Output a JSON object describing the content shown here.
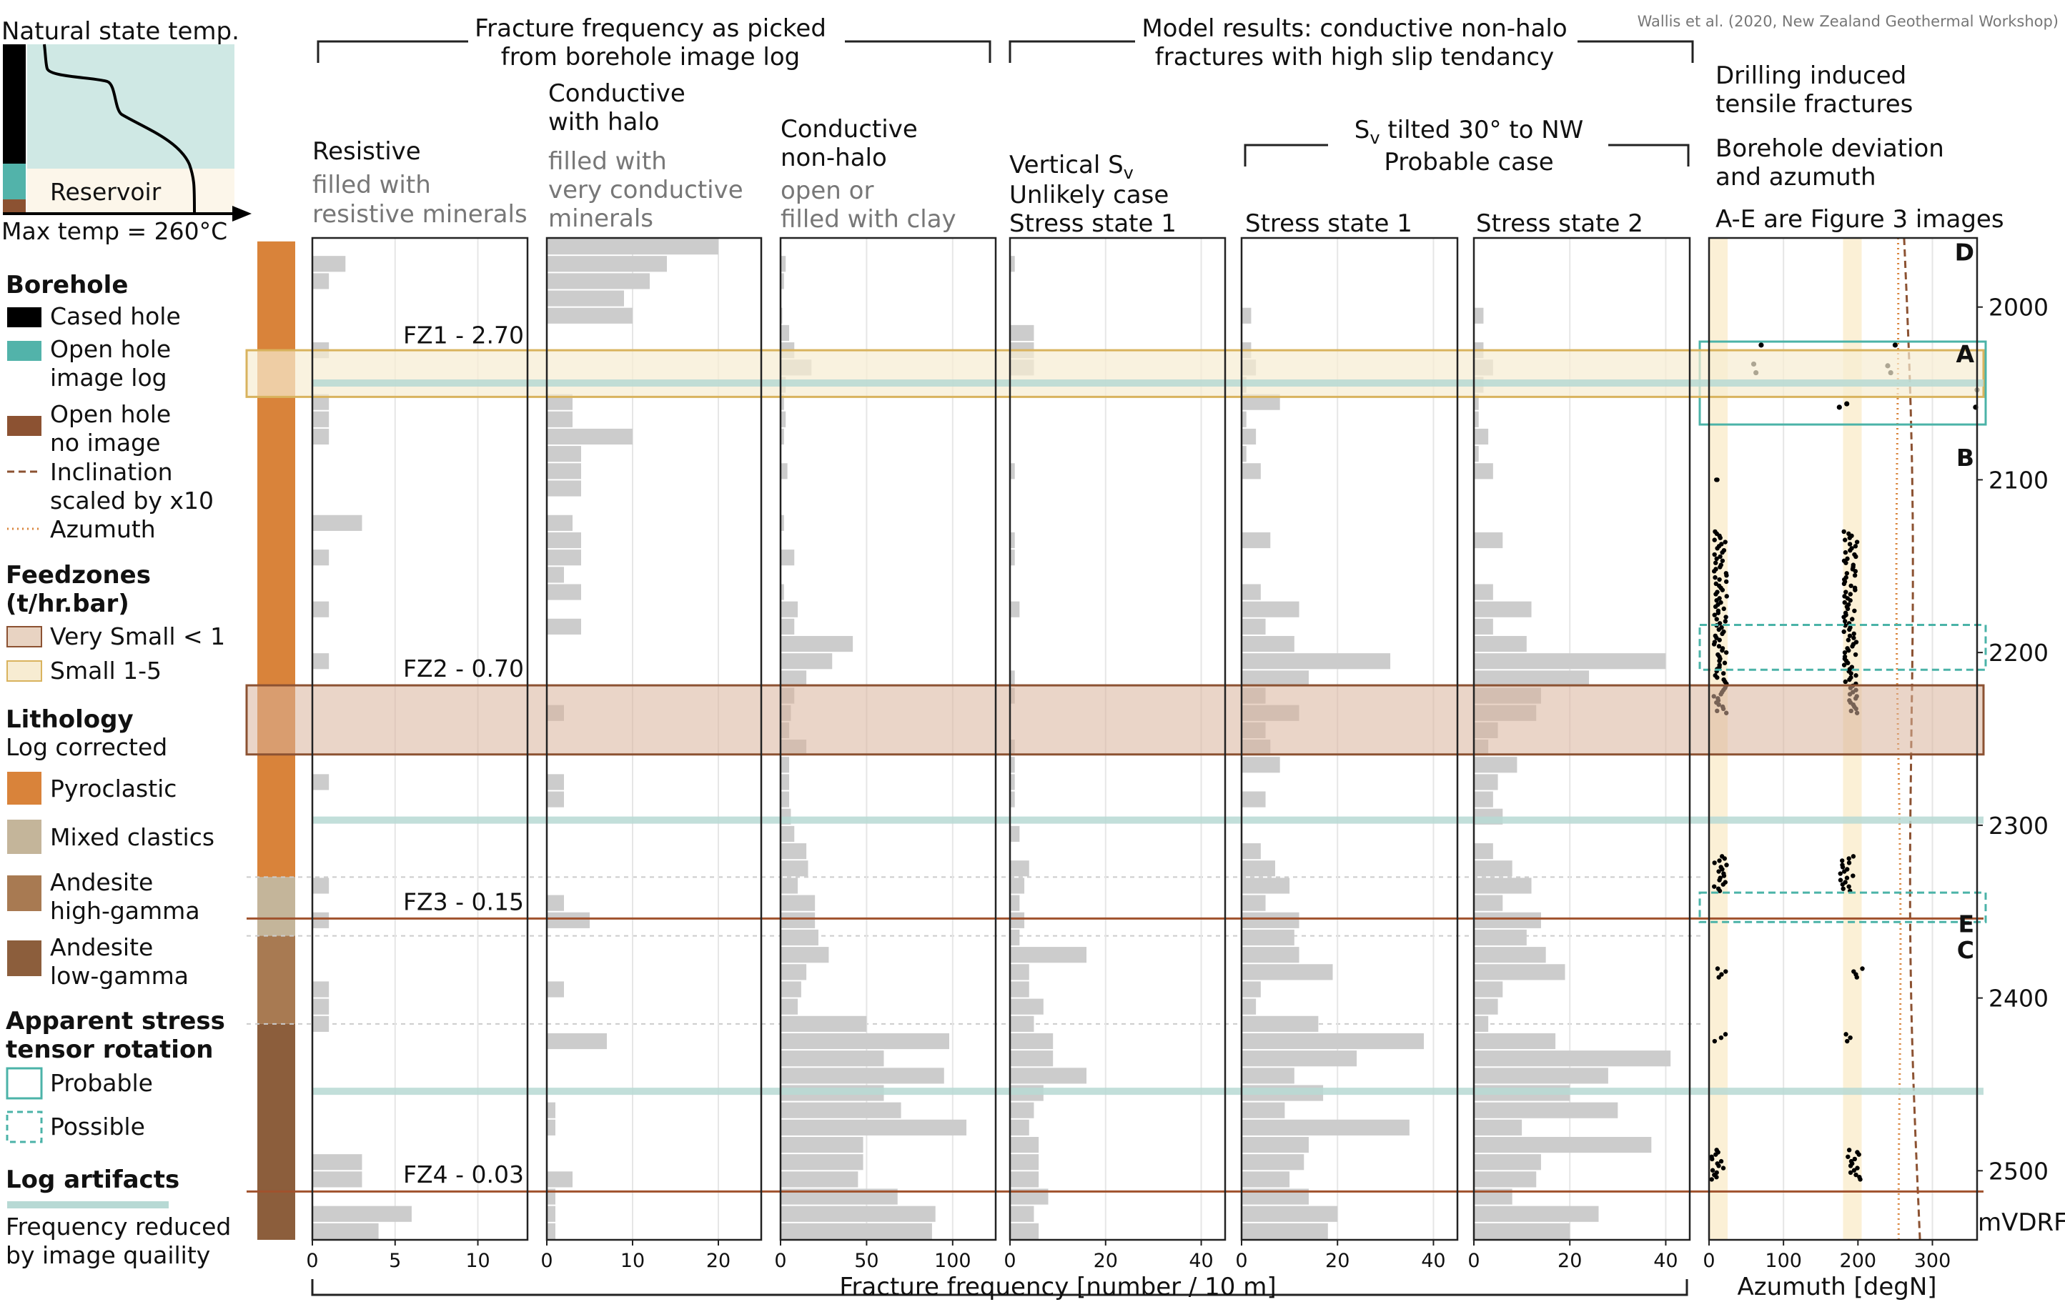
{
  "credit": "Wallis et al. (2020, New Zealand Geothermal Workshop)",
  "header": {
    "picked_line1": "Fracture frequency as picked",
    "picked_line2": "from borehole image log",
    "model_line1": "Model results: conductive non-halo",
    "model_line2": "fractures with high slip tendancy",
    "tilted_main": "S",
    "tilted_sub": "v",
    "tilted_rest": " tilted 30° to NW",
    "probable_case": "Probable case"
  },
  "panels": {
    "resistive": {
      "title": "Resistive",
      "sub1": "filled with",
      "sub2": "resistive minerals"
    },
    "halo": {
      "title1": "Conductive",
      "title2": "with halo",
      "sub1": "filled with",
      "sub2": "very conductive",
      "sub3": "minerals"
    },
    "nonhalo": {
      "title1": "Conductive",
      "title2": "non-halo",
      "sub1": "open or",
      "sub2": "filled with clay"
    },
    "vertical": {
      "title_main": "Vertical S",
      "title_sub": "v",
      "line2": "Unlikely case",
      "line3": "Stress state 1"
    },
    "ss1": {
      "title": "Stress state 1"
    },
    "ss2": {
      "title": "Stress state 2"
    },
    "azimuth": {
      "line1": "Drilling induced",
      "line2": "tensile fractures",
      "line3": "Borehole deviation",
      "line4": "and azumuth",
      "line5": "A-E are Figure 3 images",
      "xlabel": "Azumuth [degN]"
    }
  },
  "depth_unit": "mVDRF",
  "shared_xlabel": "Fracture frequency [number / 10 m]",
  "temp_inset": {
    "title": "Natural state temp.",
    "reservoir": "Reservoir",
    "max_temp": "Max temp = 260°C"
  },
  "legend": {
    "borehole": {
      "title": "Borehole",
      "cased": "Cased hole",
      "open1": "Open hole",
      "open2": "image log",
      "noimg1": "Open hole",
      "noimg2": "no image",
      "incl1": "Inclination",
      "incl2": "scaled by x10",
      "azi": "Azumuth"
    },
    "feedzones": {
      "title1": "Feedzones",
      "title2": "(t/hr.bar)",
      "very_small": "Very Small < 1",
      "small": "Small 1-5"
    },
    "lithology": {
      "title": "Lithology",
      "sub": "Log corrected",
      "pyro": "Pyroclastic",
      "mixed": "Mixed clastics",
      "and_hi1": "Andesite",
      "and_hi2": "high-gamma",
      "and_lo1": "Andesite",
      "and_lo2": "low-gamma"
    },
    "stress": {
      "title1": "Apparent stress",
      "title2": "tensor rotation",
      "probable": "Probable",
      "possible": "Possible"
    },
    "artifacts": {
      "title": "Log artifacts",
      "line1": "Frequency reduced",
      "line2": "by image quaility"
    }
  },
  "colors": {
    "pyroclastic": "#d9833a",
    "mixed_clastics": "#c4b59a",
    "andesite_high": "#a87a52",
    "andesite_low": "#8c5e3c",
    "bar": "#cccccc",
    "very_small": "#e8d3c2",
    "small": "#f7ecd2",
    "artifact": "#b7d9d4",
    "teal": "#4bb3a8",
    "cased": "#000000",
    "open_image": "#52b3aa",
    "open_noimage": "#8c5232",
    "inset_bg": "#cfe8e4",
    "inset_res": "#fcf6ea"
  },
  "chart_data": {
    "type": "bar",
    "depth_axis": {
      "ylim": [
        1960,
        2540
      ],
      "ticks": [
        2000,
        2100,
        2200,
        2300,
        2400,
        2500
      ],
      "label": "mVDRF"
    },
    "depth_bins": [
      1965,
      1975,
      1985,
      1995,
      2005,
      2015,
      2025,
      2035,
      2045,
      2055,
      2065,
      2075,
      2085,
      2095,
      2105,
      2115,
      2125,
      2135,
      2145,
      2155,
      2165,
      2175,
      2185,
      2195,
      2205,
      2215,
      2225,
      2235,
      2245,
      2255,
      2265,
      2275,
      2285,
      2295,
      2305,
      2315,
      2325,
      2335,
      2345,
      2355,
      2365,
      2375,
      2385,
      2395,
      2405,
      2415,
      2425,
      2435,
      2445,
      2455,
      2465,
      2475,
      2485,
      2495,
      2505,
      2515,
      2525,
      2535
    ],
    "panels": [
      {
        "name": "Resistive",
        "xlim": [
          0,
          13
        ],
        "xticks": [
          0,
          5,
          10
        ],
        "values": [
          0,
          2,
          1,
          0,
          0,
          0,
          1,
          0,
          0,
          1,
          1,
          1,
          0,
          0,
          0,
          0,
          3,
          0,
          1,
          0,
          0,
          1,
          0,
          0,
          1,
          0,
          0,
          0,
          0,
          0,
          0,
          1,
          0,
          0,
          0,
          0,
          0,
          1,
          0,
          1,
          0,
          0,
          0,
          1,
          1,
          1,
          0,
          0,
          0,
          0,
          0,
          0,
          0,
          3,
          3,
          0,
          6,
          4
        ]
      },
      {
        "name": "Conductive with halo",
        "xlim": [
          0,
          25
        ],
        "xticks": [
          0,
          10,
          20
        ],
        "values": [
          20,
          14,
          12,
          9,
          10,
          0,
          0,
          0,
          0,
          3,
          3,
          10,
          4,
          4,
          4,
          0,
          3,
          4,
          4,
          2,
          4,
          0,
          4,
          0,
          0,
          0,
          0,
          2,
          0,
          0,
          0,
          2,
          2,
          0,
          0,
          0,
          0,
          0,
          2,
          5,
          0,
          0,
          0,
          2,
          0,
          0,
          7,
          0,
          0,
          0,
          1,
          1,
          0,
          0,
          3,
          1,
          1,
          1
        ]
      },
      {
        "name": "Conductive non-halo",
        "xlim": [
          0,
          125
        ],
        "xticks": [
          0,
          50,
          100
        ],
        "values": [
          0,
          3,
          2,
          0,
          1,
          5,
          8,
          18,
          3,
          2,
          3,
          2,
          0,
          4,
          0,
          0,
          2,
          0,
          8,
          0,
          2,
          10,
          8,
          42,
          30,
          15,
          8,
          6,
          5,
          15,
          5,
          5,
          5,
          6,
          8,
          15,
          16,
          10,
          20,
          20,
          22,
          28,
          15,
          12,
          10,
          50,
          98,
          60,
          95,
          60,
          70,
          108,
          48,
          48,
          45,
          68,
          90,
          88
        ]
      },
      {
        "name": "Vertical Sv",
        "xlim": [
          0,
          45
        ],
        "xticks": [
          0,
          20,
          40
        ],
        "values": [
          0,
          1,
          0,
          0,
          0,
          5,
          5,
          5,
          0,
          0,
          0,
          0,
          0,
          1,
          0,
          0,
          0,
          1,
          1,
          0,
          0,
          2,
          0,
          0,
          0,
          1,
          1,
          0,
          0,
          1,
          1,
          1,
          1,
          0,
          2,
          0,
          4,
          3,
          2,
          3,
          2,
          16,
          4,
          4,
          7,
          5,
          9,
          9,
          16,
          7,
          5,
          4,
          6,
          6,
          6,
          8,
          5,
          6
        ]
      },
      {
        "name": "Stress state 1",
        "xlim": [
          0,
          45
        ],
        "xticks": [
          0,
          20,
          40
        ],
        "values": [
          0,
          0,
          0,
          0,
          2,
          0,
          2,
          3,
          1,
          8,
          1,
          3,
          1,
          4,
          0,
          0,
          0,
          6,
          0,
          0,
          4,
          12,
          5,
          11,
          31,
          14,
          5,
          12,
          5,
          6,
          8,
          0,
          5,
          0,
          0,
          4,
          7,
          10,
          5,
          12,
          11,
          12,
          19,
          4,
          3,
          16,
          38,
          24,
          11,
          17,
          9,
          35,
          14,
          13,
          10,
          14,
          20,
          18
        ]
      },
      {
        "name": "Stress state 2",
        "xlim": [
          0,
          45
        ],
        "xticks": [
          0,
          20,
          40
        ],
        "values": [
          0,
          0,
          0,
          0,
          2,
          0,
          2,
          4,
          2,
          1,
          1,
          3,
          1,
          4,
          0,
          0,
          0,
          6,
          0,
          0,
          4,
          12,
          4,
          11,
          40,
          24,
          14,
          13,
          5,
          3,
          9,
          5,
          4,
          6,
          0,
          4,
          8,
          12,
          6,
          14,
          11,
          15,
          19,
          6,
          5,
          3,
          17,
          41,
          28,
          20,
          30,
          10,
          37,
          14,
          13,
          8,
          26,
          20
        ]
      }
    ],
    "annotations": [
      {
        "label": "FZ1 - 2.70",
        "feedzone": "Small 1-5",
        "depth_range": [
          2025,
          2052
        ]
      },
      {
        "label": "FZ2 - 0.70",
        "feedzone": "Very Small < 1",
        "depth_range": [
          2219,
          2259
        ]
      },
      {
        "label": "FZ3 - 0.15",
        "feedzone": "Very Small < 1",
        "depth": 2354
      },
      {
        "label": "FZ4  - 0.03",
        "feedzone": "Very Small < 1",
        "depth": 2512
      }
    ],
    "artifact_depths": [
      2044,
      2297,
      2454
    ],
    "lithology": [
      {
        "name": "Pyroclastic",
        "top": 1962,
        "bottom": 2330
      },
      {
        "name": "Mixed clastics",
        "top": 2330,
        "bottom": 2364
      },
      {
        "name": "Andesite high-gamma",
        "top": 2364,
        "bottom": 2415
      },
      {
        "name": "Andesite low-gamma",
        "top": 2415,
        "bottom": 2540
      }
    ],
    "azimuth_panel": {
      "xlim": [
        0,
        360
      ],
      "xticks": [
        0,
        100,
        200,
        300
      ],
      "xlabel": "Azumuth [degN]",
      "stress_boxes": [
        {
          "label": "A",
          "kind": "Probable",
          "depth_range": [
            2020,
            2068
          ]
        },
        {
          "label": "Possible-2200",
          "kind": "Possible",
          "depth_range": [
            2184,
            2210
          ]
        },
        {
          "label": "E",
          "kind": "Possible",
          "depth_range": [
            2339,
            2356
          ]
        }
      ],
      "image_labels": [
        {
          "label": "D",
          "depth": 1968
        },
        {
          "label": "A",
          "depth": 2027
        },
        {
          "label": "B",
          "depth": 2087
        },
        {
          "label": "E",
          "depth": 2357
        },
        {
          "label": "C",
          "depth": 2372
        }
      ],
      "tensile_fractures": [
        {
          "azimuth": 10,
          "depth_range": [
            2100,
            2100
          ]
        },
        {
          "azimuth": 15,
          "depth_range": [
            2130,
            2235
          ]
        },
        {
          "azimuth": 190,
          "depth_range": [
            2130,
            2235
          ]
        },
        {
          "azimuth": 15,
          "depth_range": [
            2318,
            2338
          ]
        },
        {
          "azimuth": 185,
          "depth_range": [
            2318,
            2338
          ]
        },
        {
          "azimuth": 15,
          "depth_range": [
            2383,
            2388
          ]
        },
        {
          "azimuth": 200,
          "depth_range": [
            2383,
            2388
          ]
        },
        {
          "azimuth": 15,
          "depth_range": [
            2421,
            2425
          ]
        },
        {
          "azimuth": 190,
          "depth_range": [
            2421,
            2425
          ]
        },
        {
          "azimuth": 12,
          "depth_range": [
            2488,
            2505
          ]
        },
        {
          "azimuth": 195,
          "depth_range": [
            2488,
            2505
          ]
        }
      ]
    }
  }
}
